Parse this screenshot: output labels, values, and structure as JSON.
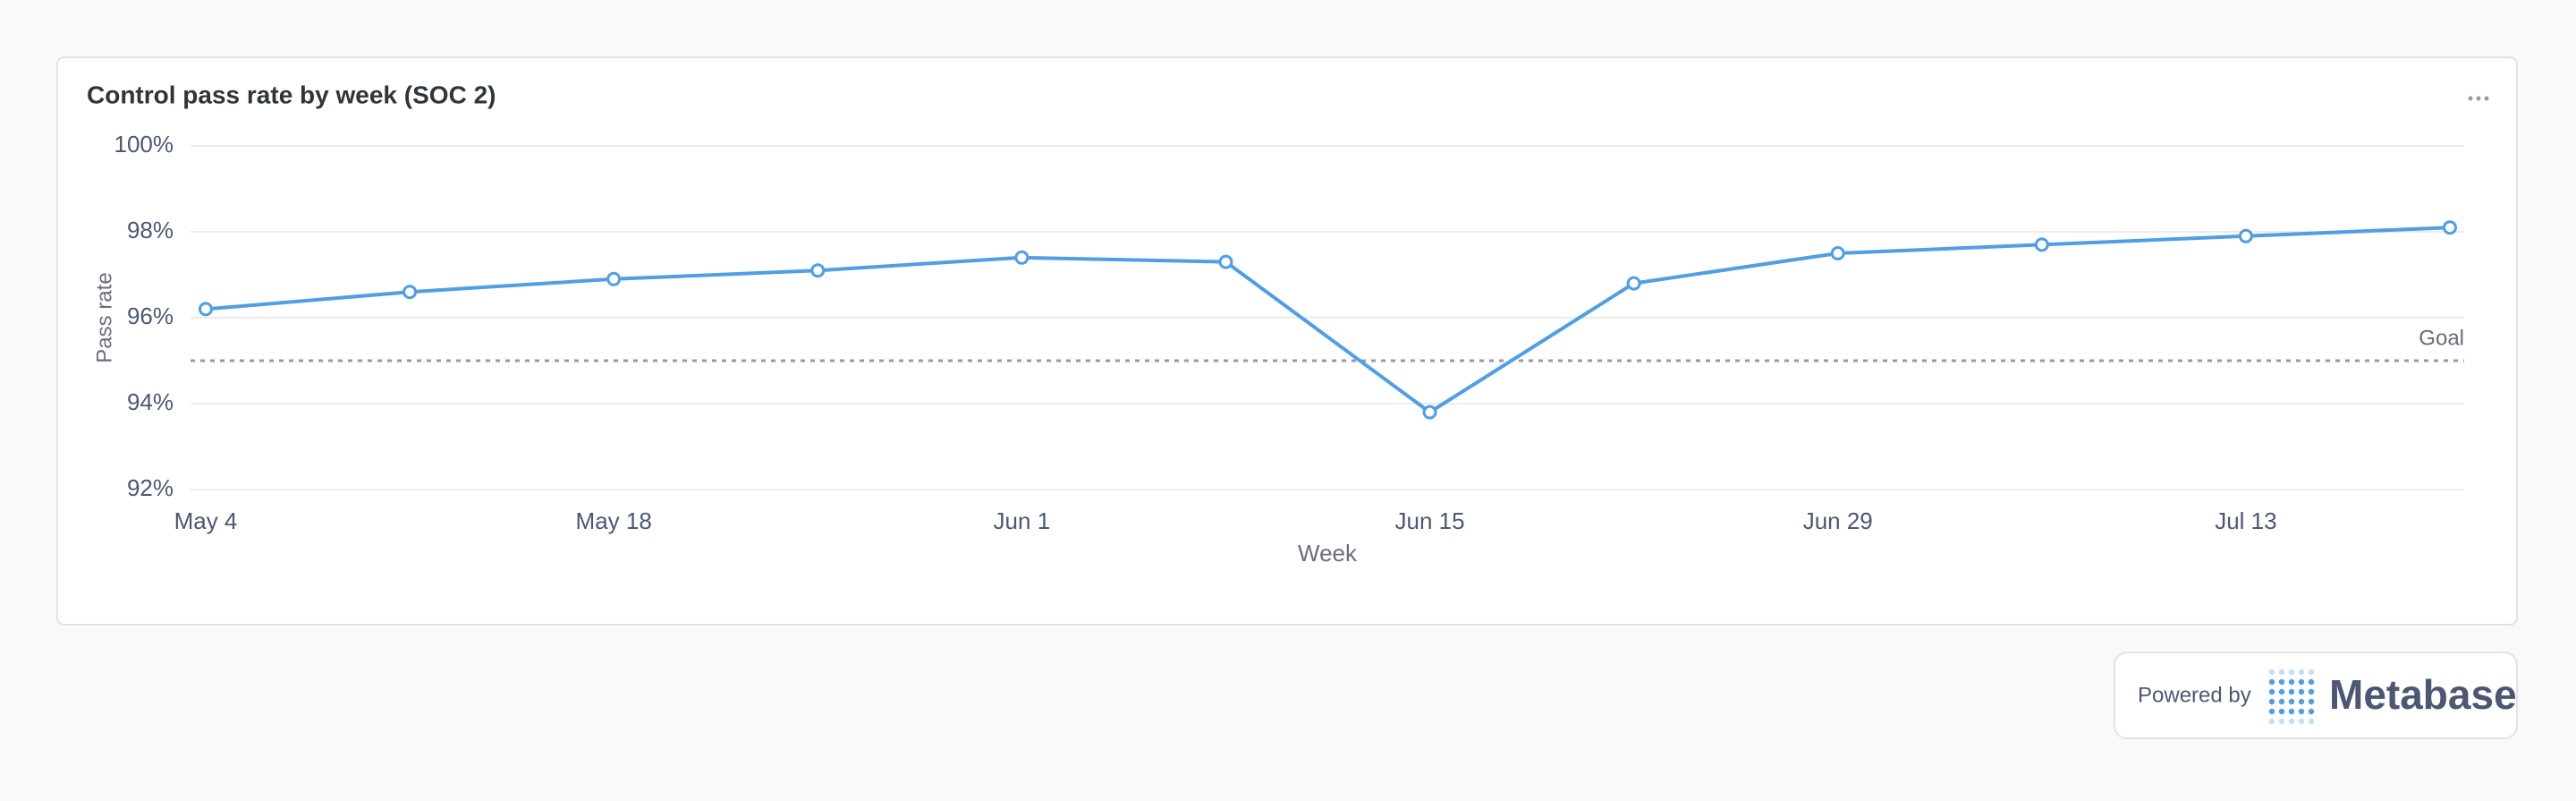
{
  "chart_data": {
    "type": "line",
    "title": "Control pass rate by week (SOC 2)",
    "x_label": "Week",
    "y_label": "Pass rate",
    "categories": [
      "May 4",
      null,
      "May 18",
      null,
      "Jun 1",
      null,
      "Jun 15",
      null,
      "Jun 29",
      null,
      "Jul 13",
      null
    ],
    "series": [
      {
        "name": "Pass rate",
        "color": "#509ee3",
        "values": [
          96.2,
          96.6,
          96.9,
          97.1,
          97.4,
          97.3,
          93.8,
          96.8,
          97.5,
          97.7,
          97.9,
          98.1
        ]
      }
    ],
    "ylim": [
      92,
      100
    ],
    "yticks": [
      {
        "value": 92,
        "label": "92%"
      },
      {
        "value": 94,
        "label": "94%"
      },
      {
        "value": 96,
        "label": "96%"
      },
      {
        "value": 98,
        "label": "98%"
      },
      {
        "value": 100,
        "label": "100%"
      }
    ],
    "grid": true,
    "goal": {
      "value": 95,
      "label": "Goal"
    }
  },
  "footer": {
    "powered_by": "Powered by",
    "brand": "Metabase"
  }
}
